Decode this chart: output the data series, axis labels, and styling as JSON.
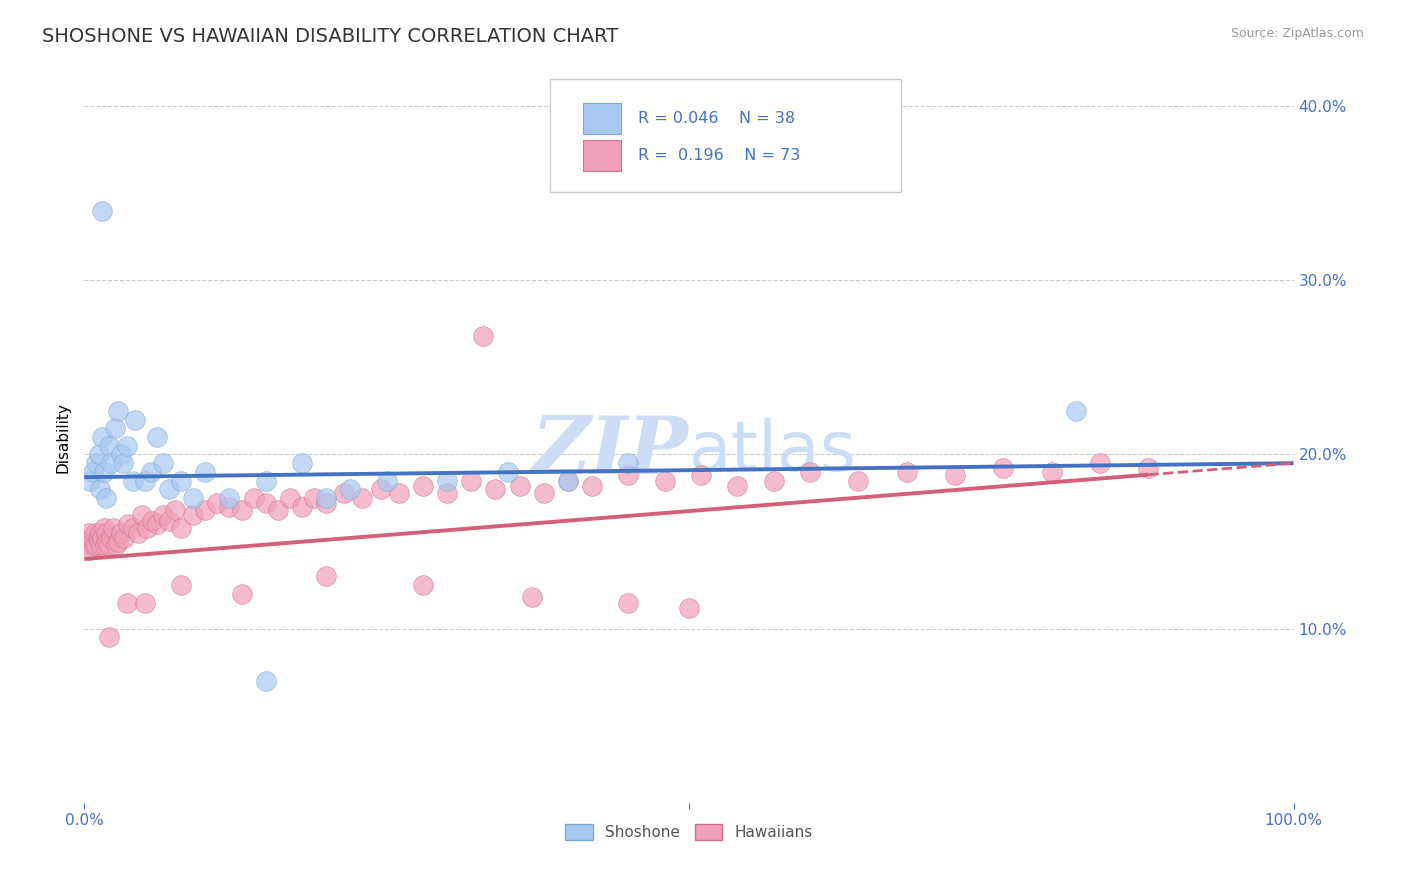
{
  "title": "SHOSHONE VS HAWAIIAN DISABILITY CORRELATION CHART",
  "source": "Source: ZipAtlas.com",
  "ylabel": "Disability",
  "xlim": [
    0,
    1.0
  ],
  "ylim": [
    0,
    0.42
  ],
  "shoshone_color": "#a8c8f0",
  "shoshone_edge": "#7aaad0",
  "hawaiian_color": "#f0a0b8",
  "hawaiian_edge": "#d07090",
  "shoshone_line_color": "#4472c4",
  "hawaiian_line_color": "#d45f7a",
  "legend_text_color": "#4472c4",
  "watermark_color": "#ccddf5",
  "shoshone_R": 0.046,
  "shoshone_N": 38,
  "hawaiian_R": 0.196,
  "hawaiian_N": 73,
  "shoshone_x": [
    0.005,
    0.007,
    0.008,
    0.01,
    0.012,
    0.013,
    0.015,
    0.015,
    0.016,
    0.018,
    0.02,
    0.022,
    0.022,
    0.025,
    0.028,
    0.03,
    0.032,
    0.035,
    0.038,
    0.04,
    0.042,
    0.045,
    0.05,
    0.055,
    0.06,
    0.065,
    0.07,
    0.08,
    0.09,
    0.1,
    0.12,
    0.15,
    0.18,
    0.2,
    0.25,
    0.3,
    0.82,
    0.015
  ],
  "shoshone_y": [
    0.185,
    0.19,
    0.175,
    0.195,
    0.2,
    0.18,
    0.21,
    0.185,
    0.19,
    0.175,
    0.205,
    0.18,
    0.195,
    0.215,
    0.225,
    0.2,
    0.195,
    0.205,
    0.225,
    0.185,
    0.22,
    0.215,
    0.185,
    0.19,
    0.21,
    0.195,
    0.18,
    0.185,
    0.175,
    0.19,
    0.175,
    0.185,
    0.195,
    0.175,
    0.18,
    0.185,
    0.225,
    0.34
  ],
  "hawaiian_x": [
    0.004,
    0.005,
    0.006,
    0.007,
    0.008,
    0.009,
    0.01,
    0.011,
    0.012,
    0.013,
    0.014,
    0.015,
    0.016,
    0.017,
    0.018,
    0.019,
    0.02,
    0.022,
    0.024,
    0.025,
    0.027,
    0.03,
    0.032,
    0.034,
    0.036,
    0.038,
    0.04,
    0.043,
    0.046,
    0.05,
    0.055,
    0.06,
    0.065,
    0.07,
    0.075,
    0.08,
    0.09,
    0.1,
    0.11,
    0.12,
    0.13,
    0.14,
    0.15,
    0.16,
    0.17,
    0.18,
    0.19,
    0.2,
    0.21,
    0.22,
    0.23,
    0.24,
    0.26,
    0.28,
    0.3,
    0.32,
    0.35,
    0.38,
    0.4,
    0.43,
    0.45,
    0.48,
    0.5,
    0.53,
    0.56,
    0.6,
    0.63,
    0.66,
    0.7,
    0.75,
    0.8,
    0.85,
    0.33
  ],
  "hawaiian_y": [
    0.15,
    0.155,
    0.145,
    0.155,
    0.15,
    0.148,
    0.152,
    0.148,
    0.155,
    0.15,
    0.152,
    0.148,
    0.155,
    0.15,
    0.152,
    0.155,
    0.148,
    0.155,
    0.15,
    0.148,
    0.152,
    0.155,
    0.148,
    0.152,
    0.16,
    0.155,
    0.165,
    0.155,
    0.16,
    0.158,
    0.155,
    0.16,
    0.158,
    0.162,
    0.158,
    0.165,
    0.158,
    0.162,
    0.165,
    0.168,
    0.17,
    0.165,
    0.175,
    0.168,
    0.172,
    0.168,
    0.172,
    0.17,
    0.175,
    0.172,
    0.168,
    0.178,
    0.175,
    0.18,
    0.175,
    0.182,
    0.178,
    0.182,
    0.18,
    0.185,
    0.182,
    0.185,
    0.188,
    0.182,
    0.185,
    0.188,
    0.185,
    0.19,
    0.188,
    0.192,
    0.19,
    0.195,
    0.27
  ]
}
